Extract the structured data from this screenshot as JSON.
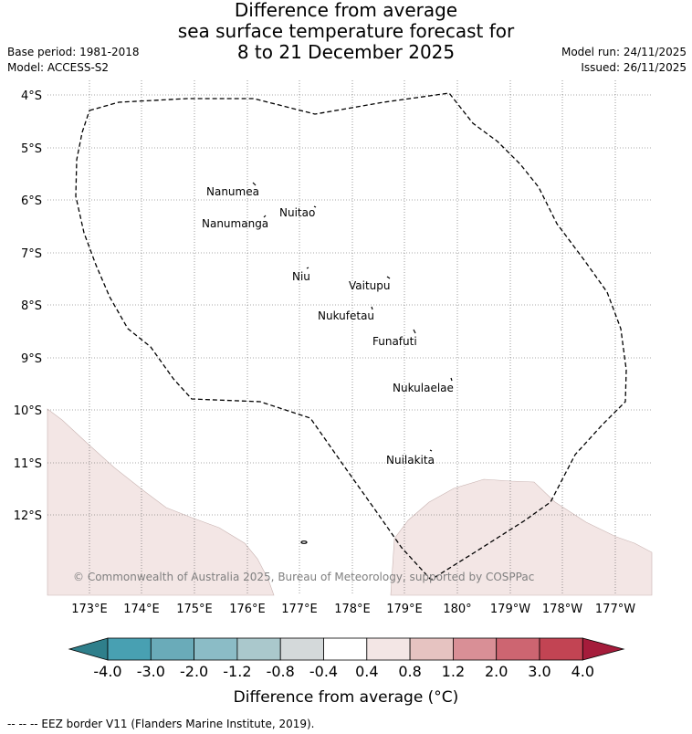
{
  "title": {
    "line1": "Difference from average",
    "line2": "sea surface temperature forecast for",
    "line3": "8 to 21 December 2025"
  },
  "meta": {
    "base_period": "Base period: 1981-2018",
    "model": "Model: ACCESS-S2",
    "model_run": "Model run: 24/11/2025",
    "issued": "Issued: 26/11/2025"
  },
  "map": {
    "lat_ticks": [
      "4°S",
      "5°S",
      "6°S",
      "7°S",
      "8°S",
      "9°S",
      "10°S",
      "11°S",
      "12°S"
    ],
    "lon_ticks": [
      "173°E",
      "174°E",
      "175°E",
      "176°E",
      "177°E",
      "178°E",
      "179°E",
      "180°",
      "179°W",
      "178°W",
      "177°W"
    ],
    "islands": [
      {
        "name": "Nanumea"
      },
      {
        "name": "Nuitao"
      },
      {
        "name": "Nanumanga"
      },
      {
        "name": "Niu"
      },
      {
        "name": "Vaitupu"
      },
      {
        "name": "Nukufetau"
      },
      {
        "name": "Funafuti"
      },
      {
        "name": "Nukulaelae"
      },
      {
        "name": "Nuilakita"
      }
    ],
    "copyright": "© Commonwealth of Australia 2025, Bureau of Meteorology, supported by COSPPac",
    "anomaly_color": "#f3e6e5",
    "border_style": "dashed"
  },
  "colorbar": {
    "ticks": [
      "-4.0",
      "-3.0",
      "-2.0",
      "-1.2",
      "-0.8",
      "-0.4",
      "0.4",
      "0.8",
      "1.2",
      "2.0",
      "3.0",
      "4.0"
    ],
    "colors": [
      "#2f7f8b",
      "#48a0b2",
      "#6aabb9",
      "#8bbcc6",
      "#aac8cc",
      "#d4d9da",
      "#ffffff",
      "#f3e6e5",
      "#e6c3c1",
      "#d98f96",
      "#cd6571",
      "#c24453",
      "#a51c3b"
    ],
    "label": "Difference from average (°C)"
  },
  "footnote": "--  --  -- EEZ border V11 (Flanders Marine Institute, 2019)."
}
